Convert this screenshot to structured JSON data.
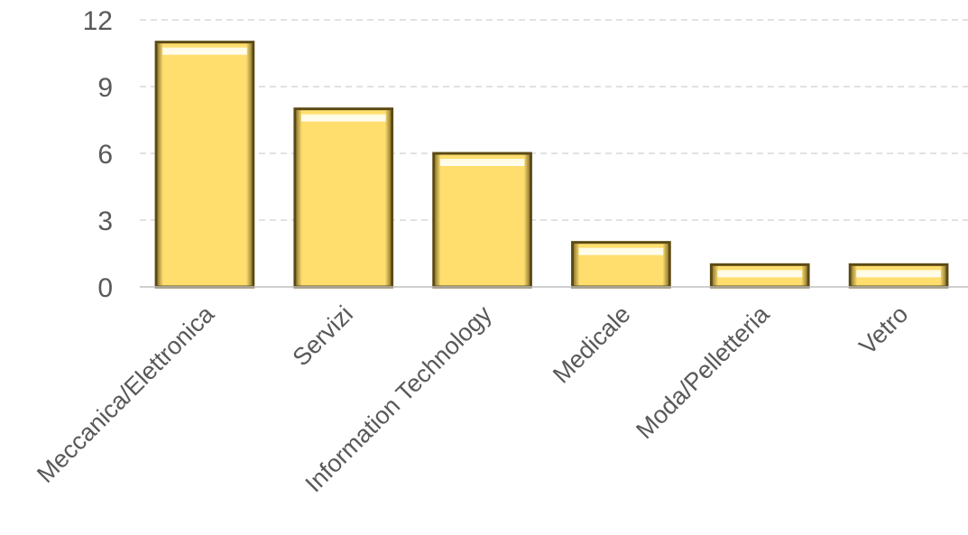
{
  "chart_data": {
    "type": "bar",
    "categories": [
      "Meccanica/Elettronica",
      "Servizi",
      "Information Technology",
      "Medicale",
      "Moda/Pelletteria",
      "Vetro"
    ],
    "values": [
      11,
      8,
      6,
      2,
      1,
      1
    ],
    "y_ticks": [
      "0",
      "3",
      "6",
      "9",
      "12"
    ],
    "ylim": [
      0,
      12
    ],
    "grid": "horizontal dashed",
    "legend": "none",
    "bar_color": "#FFDE6E",
    "bar_edge_color": "#5C4A14",
    "grid_color": "#D9D9D9",
    "axis_color": "#BFBFBF",
    "tick_label_color": "#595959"
  }
}
